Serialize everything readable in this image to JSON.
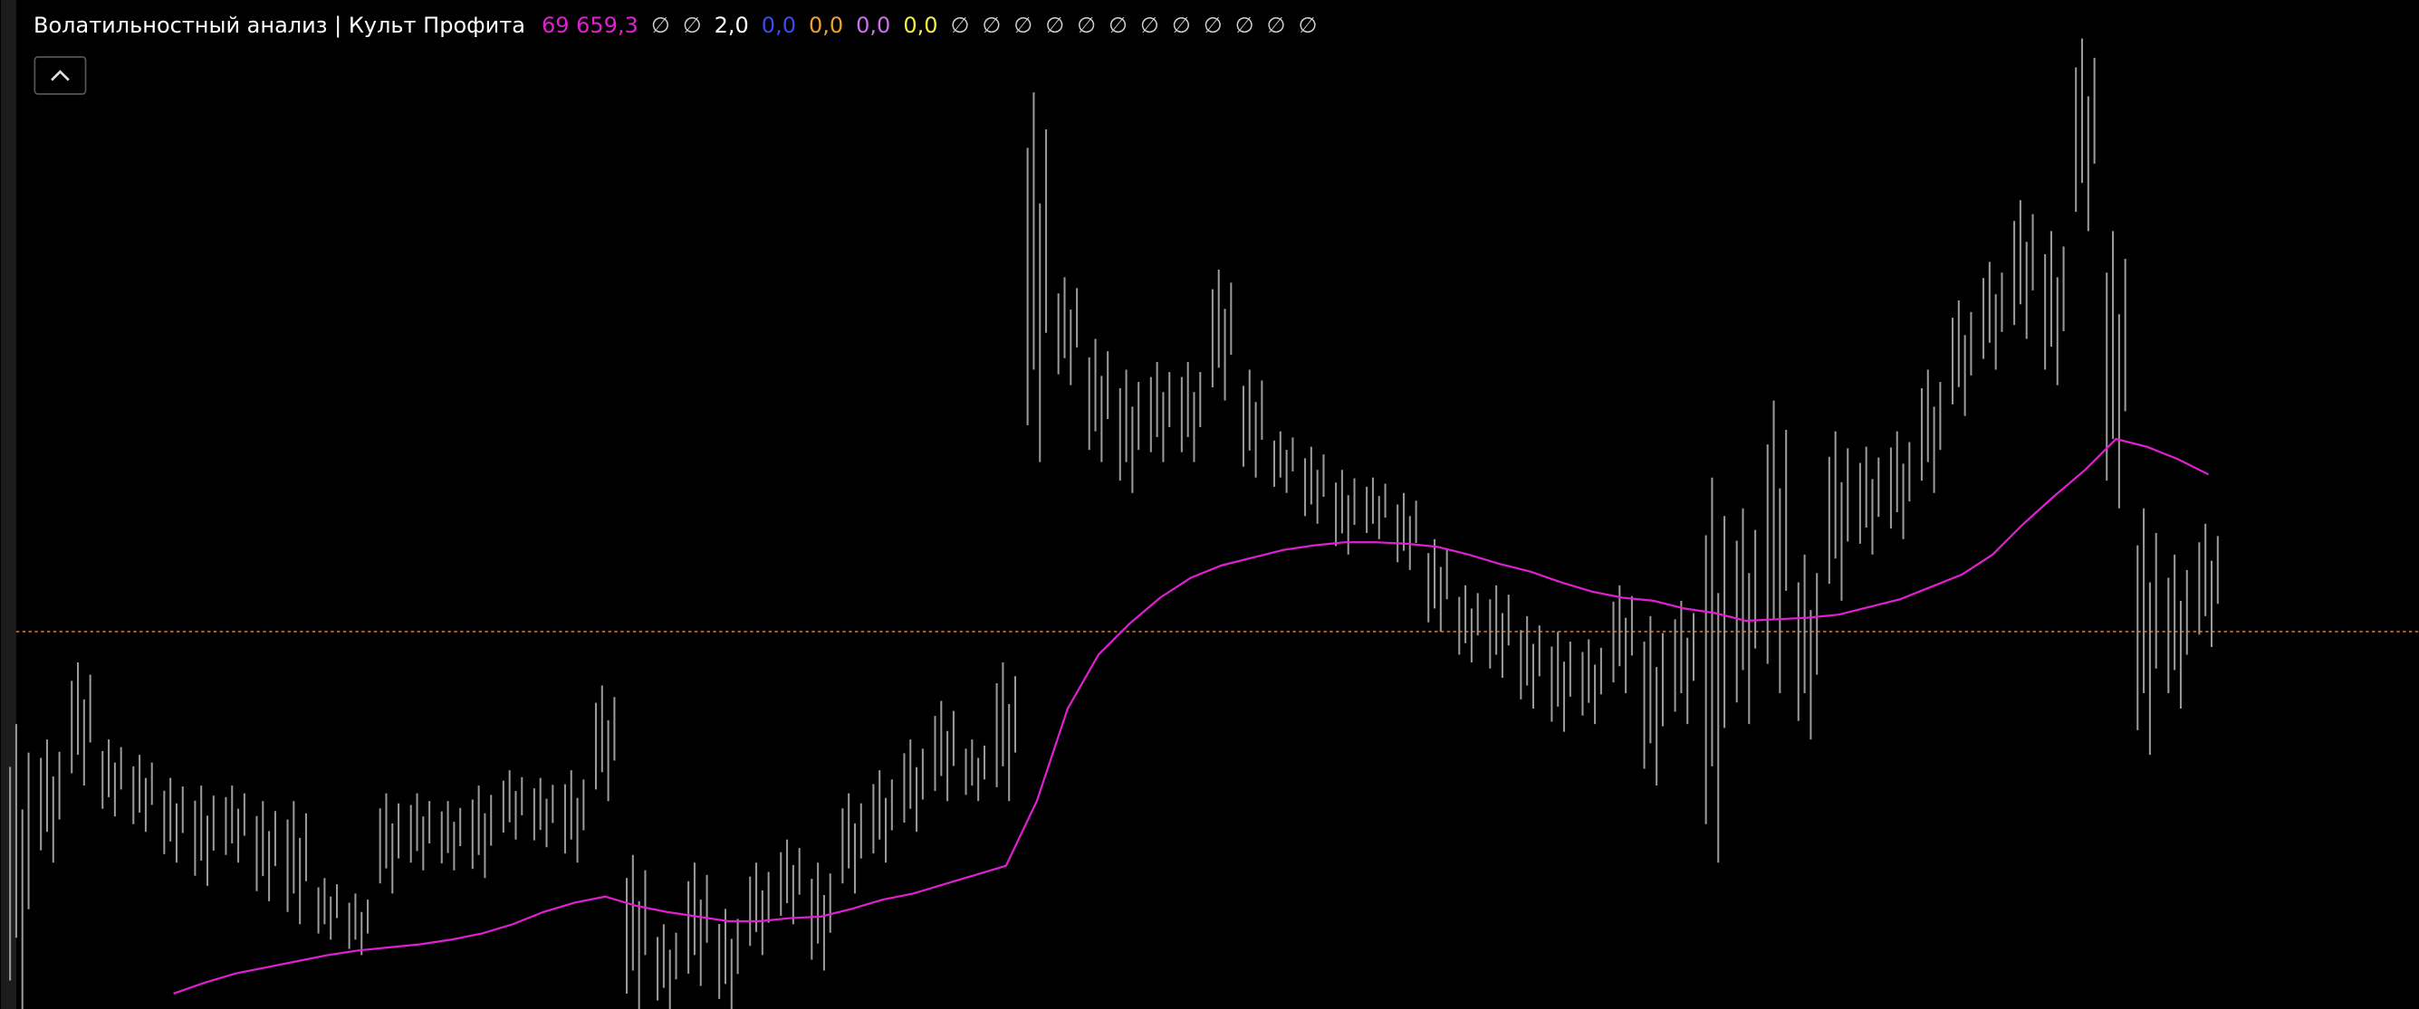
{
  "header": {
    "title": "Волатильностный анализ | Культ Профита",
    "items": [
      {
        "text": "69 659,3",
        "color": "#e020d0"
      },
      {
        "text": "∅",
        "color": "#d0d0d0"
      },
      {
        "text": "∅",
        "color": "#d0d0d0"
      },
      {
        "text": "2,0",
        "color": "#ffffff"
      },
      {
        "text": "0,0",
        "color": "#3a4cf0"
      },
      {
        "text": "0,0",
        "color": "#f0a030"
      },
      {
        "text": "0,0",
        "color": "#d070f0"
      },
      {
        "text": "0,0",
        "color": "#f0f040"
      },
      {
        "text": "∅",
        "color": "#d0d0d0"
      },
      {
        "text": "∅",
        "color": "#d0d0d0"
      },
      {
        "text": "∅",
        "color": "#d0d0d0"
      },
      {
        "text": "∅",
        "color": "#d0d0d0"
      },
      {
        "text": "∅",
        "color": "#d0d0d0"
      },
      {
        "text": "∅",
        "color": "#d0d0d0"
      },
      {
        "text": "∅",
        "color": "#d0d0d0"
      },
      {
        "text": "∅",
        "color": "#d0d0d0"
      },
      {
        "text": "∅",
        "color": "#d0d0d0"
      },
      {
        "text": "∅",
        "color": "#d0d0d0"
      },
      {
        "text": "∅",
        "color": "#d0d0d0"
      },
      {
        "text": "∅",
        "color": "#d0d0d0"
      }
    ]
  },
  "chart_data": {
    "type": "range-bars",
    "ylim": [
      65450,
      72000
    ],
    "level": {
      "value": 67900,
      "color": "#e07020"
    },
    "series": [
      {
        "color": "#9a9a9a",
        "values": [
          67300,
          67200,
          67700,
          67200,
          67100,
          66950,
          66900,
          66900,
          66800,
          66800,
          66300,
          66200,
          66850,
          66850,
          66800,
          66900,
          67000,
          66950,
          67000,
          67550,
          66450,
          66000,
          66400,
          66100,
          66400,
          66550,
          66400,
          66850,
          67000,
          67200,
          67450,
          67200,
          67700,
          71400,
          70200,
          69800,
          69600,
          69650,
          69650,
          70250,
          69600,
          69200,
          69100,
          68950,
          68900,
          68800,
          68500,
          68200,
          68200,
          68000,
          67900,
          67850,
          68200,
          68000,
          68100,
          68900,
          68700,
          69400,
          68400,
          69200,
          69100,
          69200,
          69600,
          70050,
          70300,
          70700,
          70500,
          71750,
          70500,
          68700,
          68400,
          68600
        ]
      },
      {
        "color": "#9a9a9a",
        "values": [
          65450,
          66400,
          66900,
          66700,
          66600,
          66400,
          66250,
          66400,
          66150,
          66000,
          65900,
          65800,
          66200,
          66350,
          66350,
          66300,
          66550,
          66500,
          66400,
          66800,
          65450,
          65450,
          65600,
          65450,
          65800,
          66000,
          65700,
          66200,
          66400,
          66600,
          66800,
          66800,
          66800,
          69000,
          69500,
          69000,
          68800,
          69000,
          69000,
          69400,
          68900,
          68800,
          68600,
          68400,
          68500,
          68300,
          67900,
          67700,
          67600,
          67400,
          67250,
          67300,
          67500,
          66900,
          67300,
          66400,
          67300,
          67500,
          67200,
          68100,
          68400,
          68500,
          68800,
          69300,
          69600,
          69800,
          69500,
          70500,
          68700,
          67100,
          67400,
          67800
        ]
      },
      {
        "color": "#e020d0",
        "values": [
          null,
          null,
          null,
          null,
          null,
          65550,
          65620,
          65680,
          65720,
          65760,
          65800,
          65830,
          65850,
          65870,
          65900,
          65940,
          66000,
          66080,
          66140,
          66180,
          66120,
          66080,
          66050,
          66020,
          66020,
          66040,
          66050,
          66100,
          66160,
          66200,
          66260,
          66320,
          66380,
          66800,
          67400,
          67750,
          67950,
          68120,
          68250,
          68330,
          68380,
          68430,
          68460,
          68480,
          68480,
          68470,
          68450,
          68400,
          68340,
          68290,
          68220,
          68160,
          68120,
          68100,
          68050,
          68020,
          67970,
          67980,
          67990,
          68010,
          68060,
          68110,
          68190,
          68270,
          68400,
          68600,
          68780,
          68950,
          69150,
          69100,
          69020,
          68920
        ]
      }
    ]
  }
}
